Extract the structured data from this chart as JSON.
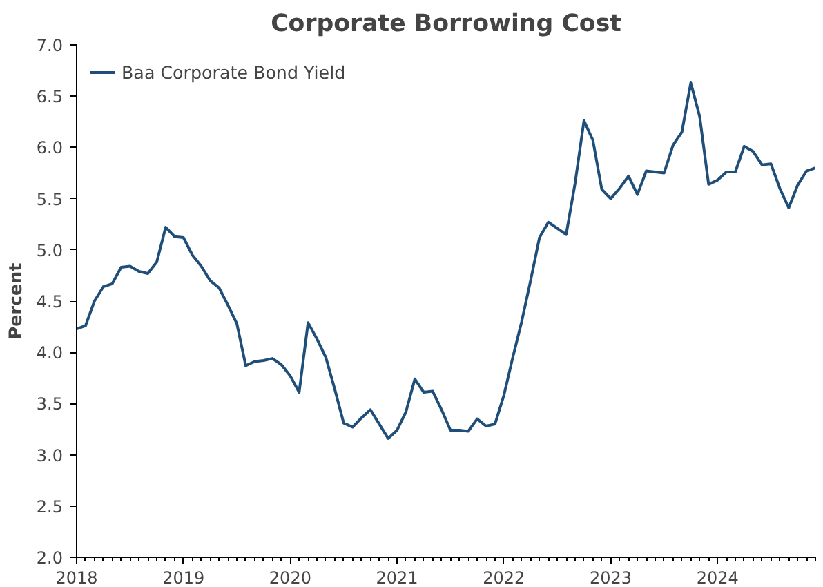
{
  "chart_data": {
    "type": "line",
    "title": "Corporate Borrowing Cost",
    "ylabel": "Percent",
    "x": [
      "2018-01",
      "2018-02",
      "2018-03",
      "2018-04",
      "2018-05",
      "2018-06",
      "2018-07",
      "2018-08",
      "2018-09",
      "2018-10",
      "2018-11",
      "2018-12",
      "2019-01",
      "2019-02",
      "2019-03",
      "2019-04",
      "2019-05",
      "2019-06",
      "2019-07",
      "2019-08",
      "2019-09",
      "2019-10",
      "2019-11",
      "2019-12",
      "2020-01",
      "2020-02",
      "2020-03",
      "2020-04",
      "2020-05",
      "2020-06",
      "2020-07",
      "2020-08",
      "2020-09",
      "2020-10",
      "2020-11",
      "2020-12",
      "2021-01",
      "2021-02",
      "2021-03",
      "2021-04",
      "2021-05",
      "2021-06",
      "2021-07",
      "2021-08",
      "2021-09",
      "2021-10",
      "2021-11",
      "2021-12",
      "2022-01",
      "2022-02",
      "2022-03",
      "2022-04",
      "2022-05",
      "2022-06",
      "2022-07",
      "2022-08",
      "2022-09",
      "2022-10",
      "2022-11",
      "2022-12",
      "2023-01",
      "2023-02",
      "2023-03",
      "2023-04",
      "2023-05",
      "2023-06",
      "2023-07",
      "2023-08",
      "2023-09",
      "2023-10",
      "2023-11",
      "2023-12",
      "2024-01",
      "2024-02",
      "2024-03",
      "2024-04",
      "2024-05",
      "2024-06",
      "2024-07",
      "2024-08",
      "2024-09",
      "2024-10",
      "2024-11",
      "2024-12"
    ],
    "series": [
      {
        "name": "Baa Corporate Bond Yield",
        "color": "#1f4e79",
        "values": [
          4.23,
          4.26,
          4.5,
          4.64,
          4.67,
          4.83,
          4.84,
          4.79,
          4.77,
          4.88,
          5.22,
          5.13,
          5.12,
          4.95,
          4.84,
          4.7,
          4.63,
          4.46,
          4.28,
          3.87,
          3.91,
          3.92,
          3.94,
          3.88,
          3.77,
          3.61,
          4.29,
          4.13,
          3.95,
          3.64,
          3.31,
          3.27,
          3.36,
          3.44,
          3.3,
          3.16,
          3.24,
          3.42,
          3.74,
          3.61,
          3.62,
          3.44,
          3.24,
          3.24,
          3.23,
          3.35,
          3.28,
          3.3,
          3.58,
          3.95,
          4.3,
          4.7,
          5.12,
          5.27,
          5.21,
          5.15,
          5.65,
          6.26,
          6.07,
          5.59,
          5.5,
          5.6,
          5.72,
          5.54,
          5.77,
          5.76,
          5.75,
          6.02,
          6.15,
          6.63,
          6.3,
          5.64,
          5.68,
          5.76,
          5.76,
          6.01,
          5.96,
          5.83,
          5.84,
          5.6,
          5.41,
          5.63,
          5.77,
          5.8
        ]
      }
    ],
    "xlim": [
      "2018-01",
      "2024-12"
    ],
    "xticks": [
      {
        "value": "2018-01",
        "label": "2018"
      },
      {
        "value": "2019-01",
        "label": "2019"
      },
      {
        "value": "2020-01",
        "label": "2020"
      },
      {
        "value": "2021-01",
        "label": "2021"
      },
      {
        "value": "2022-01",
        "label": "2022"
      },
      {
        "value": "2023-01",
        "label": "2023"
      },
      {
        "value": "2024-01",
        "label": "2024"
      }
    ],
    "ylim": [
      2.0,
      7.0
    ],
    "yticks": [
      {
        "value": 2,
        "label": "2.0"
      },
      {
        "value": 2.5,
        "label": "2.5"
      },
      {
        "value": 3,
        "label": "3.0"
      },
      {
        "value": 3.5,
        "label": "3.5"
      },
      {
        "value": 4,
        "label": "4.0"
      },
      {
        "value": 4.5,
        "label": "4.5"
      },
      {
        "value": 5,
        "label": "5.0"
      },
      {
        "value": 5.5,
        "label": "5.5"
      },
      {
        "value": 6,
        "label": "6.0"
      },
      {
        "value": 6.5,
        "label": "6.5"
      },
      {
        "value": 7,
        "label": "7.0"
      }
    ],
    "grid": false,
    "legend": "top left",
    "marker": "none",
    "line_style": "solid"
  }
}
